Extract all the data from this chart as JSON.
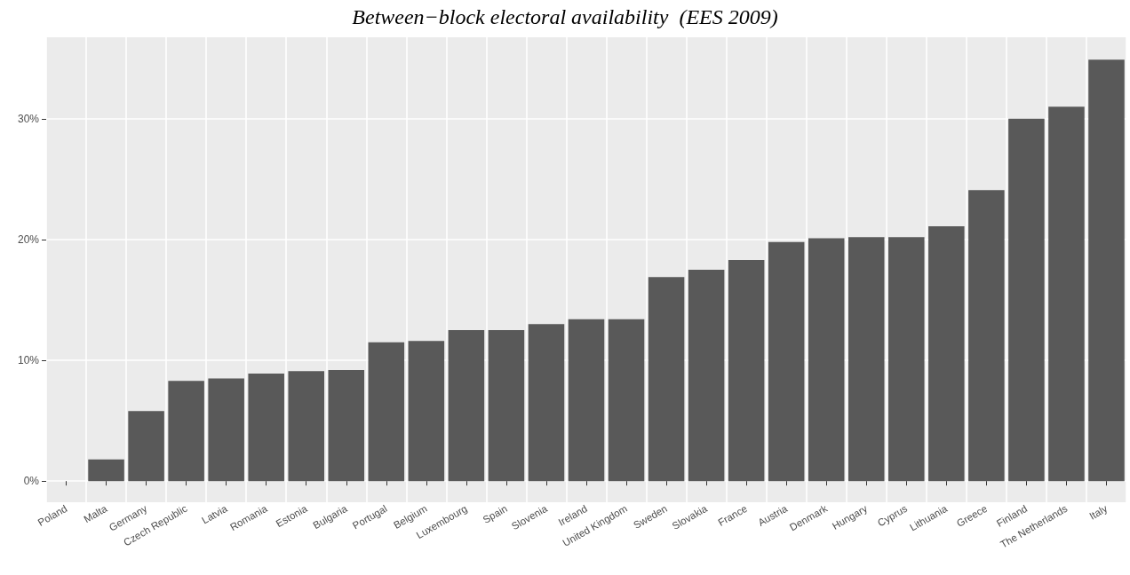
{
  "chart_data": {
    "type": "bar",
    "title": "Between−block electoral availability  (EES 2009)",
    "categories": [
      "Poland",
      "Malta",
      "Germany",
      "Czech Republic",
      "Latvia",
      "Romania",
      "Estonia",
      "Bulgaria",
      "Portugal",
      "Belgium",
      "Luxembourg",
      "Spain",
      "Slovenia",
      "Ireland",
      "United Kingdom",
      "Sweden",
      "Slovakia",
      "France",
      "Austria",
      "Denmark",
      "Hungary",
      "Cyprus",
      "Lithuania",
      "Greece",
      "Finland",
      "The Netherlands",
      "Italy"
    ],
    "values": [
      0,
      1.8,
      5.8,
      8.3,
      8.5,
      8.9,
      9.1,
      9.2,
      11.5,
      11.6,
      12.5,
      12.5,
      13.0,
      13.4,
      13.4,
      16.9,
      17.5,
      18.3,
      19.8,
      20.1,
      20.2,
      20.2,
      21.1,
      24.1,
      30.0,
      31.0,
      34.9
    ],
    "color": "#595959",
    "ylim": [
      -1.75,
      36.75
    ],
    "yticks": [
      {
        "value": 0,
        "label": "0%"
      },
      {
        "value": 10,
        "label": "10%"
      },
      {
        "value": 20,
        "label": "20%"
      },
      {
        "value": 30,
        "label": "30%"
      }
    ],
    "grid": true
  }
}
